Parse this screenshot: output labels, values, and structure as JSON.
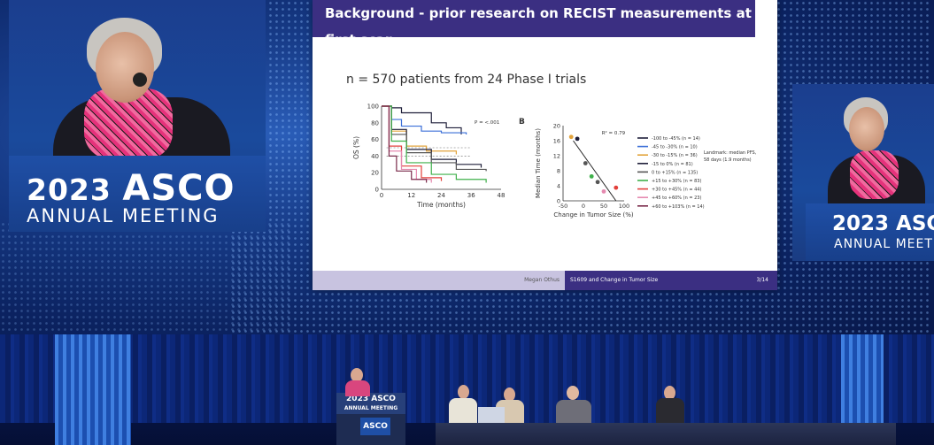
{
  "event": {
    "year": "2023",
    "brand": "ASCO",
    "subtitle": "ANNUAL MEETING",
    "podium_brand": "ASCO",
    "podium_year_line": "2023 ASCO",
    "podium_subtitle": "ANNUAL MEETING"
  },
  "slide": {
    "title": "Background - prior research on RECIST measurements at first scan",
    "subtitle": "n = 570 patients from 24 Phase I trials",
    "footer_author": "Megan Othus",
    "footer_title": "S1609 and Change in Tumor Size",
    "page": "3/14"
  },
  "chart_data": [
    {
      "type": "line",
      "panel_label": "",
      "annotation": "P = <.001",
      "xlabel": "Time (months)",
      "ylabel": "OS (%)",
      "xlim": [
        0,
        48
      ],
      "ylim": [
        0,
        100
      ],
      "xticks": [
        0,
        12,
        24,
        36,
        48
      ],
      "yticks": [
        0,
        20,
        40,
        60,
        80,
        100
      ],
      "series": [
        {
          "color": "#1f1f3a",
          "x": [
            0,
            4,
            8,
            20,
            26,
            32
          ],
          "y": [
            100,
            98,
            92,
            80,
            74,
            66
          ]
        },
        {
          "color": "#3b6fd8",
          "x": [
            0,
            4,
            8,
            16,
            24,
            34
          ],
          "y": [
            100,
            84,
            76,
            70,
            68,
            66
          ]
        },
        {
          "color": "#e2a33b",
          "x": [
            0,
            4,
            10,
            18,
            30
          ],
          "y": [
            100,
            70,
            52,
            46,
            42
          ]
        },
        {
          "color": "#1f1f3a",
          "x": [
            0,
            4,
            10,
            20,
            30,
            40
          ],
          "y": [
            100,
            72,
            48,
            36,
            30,
            26
          ]
        },
        {
          "color": "#555555",
          "x": [
            0,
            4,
            10,
            20,
            30,
            42
          ],
          "y": [
            100,
            66,
            44,
            32,
            24,
            22
          ]
        },
        {
          "color": "#3fb04a",
          "x": [
            0,
            4,
            10,
            20,
            30,
            42
          ],
          "y": [
            100,
            58,
            32,
            18,
            12,
            8
          ]
        },
        {
          "color": "#e2403b",
          "x": [
            0,
            3,
            8,
            16,
            24
          ],
          "y": [
            100,
            52,
            28,
            14,
            10
          ]
        },
        {
          "color": "#e58ab0",
          "x": [
            0,
            3,
            8,
            14,
            20
          ],
          "y": [
            100,
            46,
            24,
            12,
            8
          ]
        },
        {
          "color": "#7a2a4a",
          "x": [
            0,
            3,
            6,
            12,
            18
          ],
          "y": [
            100,
            40,
            22,
            12,
            8
          ]
        }
      ],
      "reference_lines": [
        {
          "style": "dashed",
          "y": 50
        },
        {
          "style": "dashed",
          "y": 40
        }
      ]
    },
    {
      "type": "scatter",
      "panel_label": "B",
      "annotation": "R² = 0.79",
      "xlabel": "Change in Tumor Size (%)",
      "ylabel": "Median Time (months)",
      "xlim": [
        -50,
        100
      ],
      "ylim": [
        0,
        20
      ],
      "xticks": [
        -50,
        0,
        50,
        100
      ],
      "yticks": [
        0,
        4,
        8,
        12,
        16,
        20
      ],
      "points": [
        {
          "x": -30,
          "y": 17,
          "color": "#e2a33b"
        },
        {
          "x": -15,
          "y": 16.5,
          "color": "#1f1f3a"
        },
        {
          "x": 5,
          "y": 10,
          "color": "#555555"
        },
        {
          "x": 20,
          "y": 6.5,
          "color": "#3fb04a"
        },
        {
          "x": 35,
          "y": 5,
          "color": "#555555"
        },
        {
          "x": 50,
          "y": 2.5,
          "color": "#e58ab0"
        },
        {
          "x": 80,
          "y": 3.5,
          "color": "#e2403b"
        }
      ],
      "fit_line": {
        "x": [
          -25,
          80
        ],
        "y": [
          16,
          0
        ]
      },
      "legend": [
        {
          "label": "-100 to -45% (n = 14)",
          "color": "#1f1f3a"
        },
        {
          "label": "-45 to -30% (n = 10)",
          "color": "#3b6fd8"
        },
        {
          "label": "-30 to -15% (n = 36)",
          "color": "#e2a33b"
        },
        {
          "label": "-15 to 0% (n = 81)",
          "color": "#1f1f3a"
        },
        {
          "label": "0 to +15% (n = 135)",
          "color": "#555555"
        },
        {
          "label": "+15 to +30% (n = 83)",
          "color": "#3fb04a"
        },
        {
          "label": "+30 to +45% (n = 44)",
          "color": "#e2403b"
        },
        {
          "label": "+45 to +60% (n = 23)",
          "color": "#e58ab0"
        },
        {
          "label": "+60 to +103% (n = 14)",
          "color": "#7a2a4a"
        }
      ],
      "landmark_note_1": "Landmark: median PFS,",
      "landmark_note_2": "58 days (1.9 months)"
    }
  ],
  "colors": {
    "slide_title_bg": "#3b2f82",
    "screen_blue": "#163a86",
    "scarf_pink": "#e5327b"
  }
}
